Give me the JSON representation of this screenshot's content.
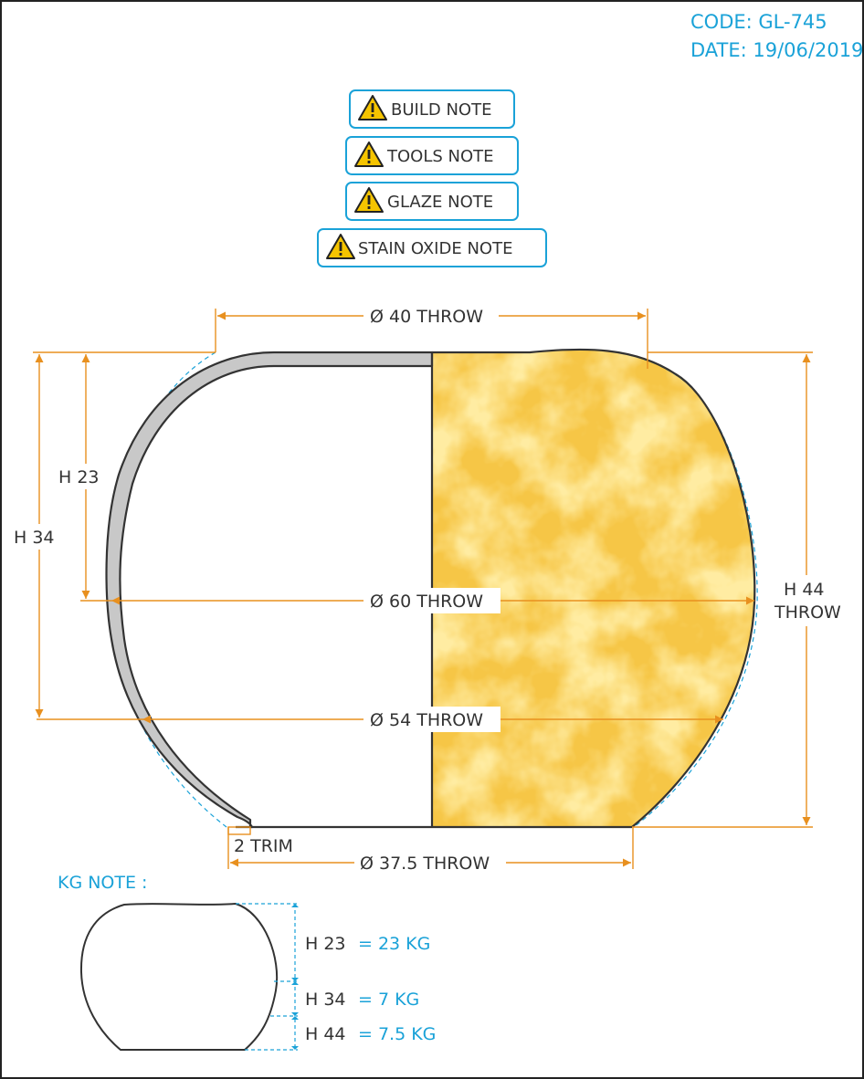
{
  "header": {
    "code": "CODE: GL-745",
    "date": "DATE: 19/06/2019"
  },
  "notes": [
    {
      "label": "BUILD NOTE",
      "icon": "warning-icon"
    },
    {
      "label": "TOOLS NOTE",
      "icon": "warning-icon"
    },
    {
      "label": "GLAZE NOTE",
      "icon": "warning-icon"
    },
    {
      "label": "STAIN OXIDE NOTE",
      "icon": "warning-icon"
    }
  ],
  "dimensions": {
    "top_diameter": "Ø 40 THROW",
    "widest_diameter": "Ø 60 THROW",
    "lower_diameter": "Ø 54 THROW",
    "base_diameter": "Ø 37.5 THROW",
    "trim": "2 TRIM",
    "h23": "H 23",
    "h34": "H 34",
    "h44_line1": "H 44",
    "h44_line2": "THROW"
  },
  "kg_note": {
    "title": "KG NOTE :",
    "rows": [
      {
        "height": "H 23",
        "weight": "= 23 KG"
      },
      {
        "height": "H 34",
        "weight": "= 7 KG"
      },
      {
        "height": "H 44",
        "weight": "= 7.5 KG"
      }
    ]
  },
  "colors": {
    "dimension_line": "#e8901f",
    "accent_blue": "#1aa2d8",
    "outline": "#333333",
    "wall_fill": "#c8c8c8",
    "glaze_yellow": "#f5c43c"
  }
}
